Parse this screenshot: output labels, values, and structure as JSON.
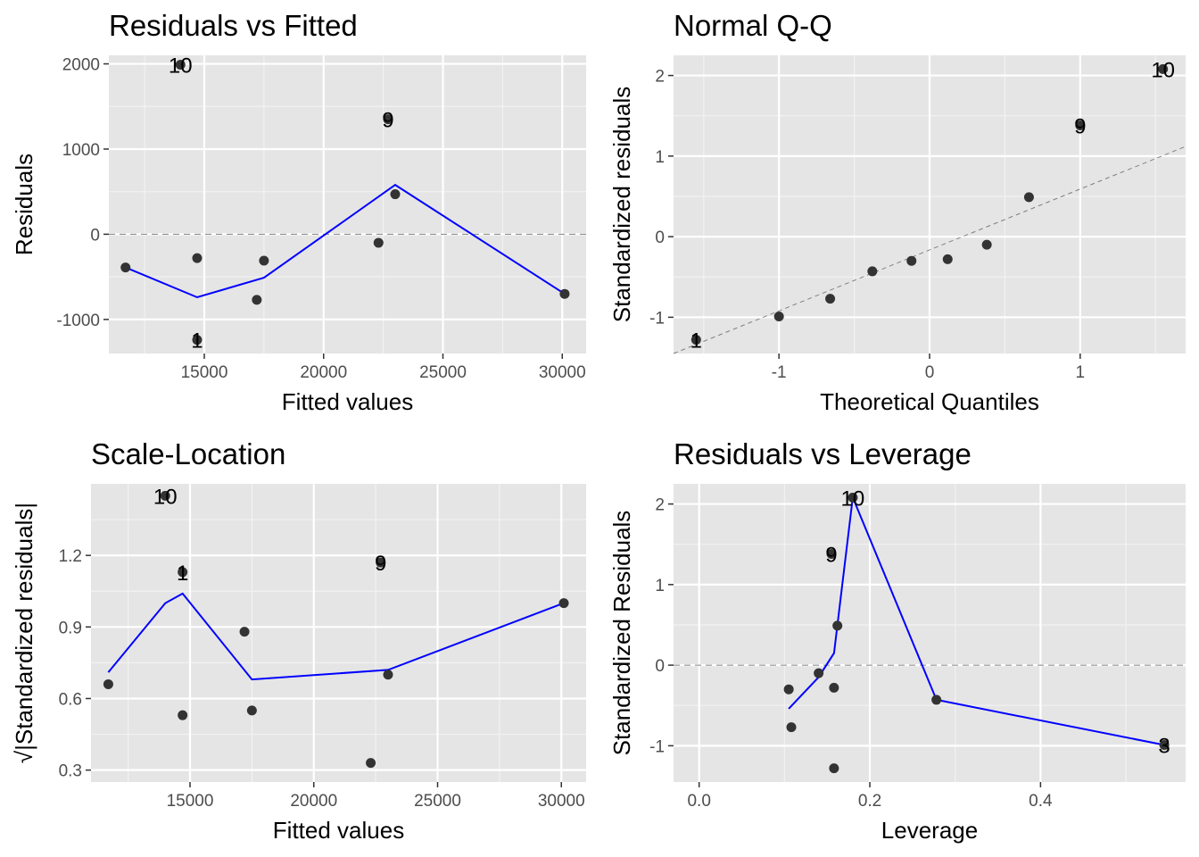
{
  "chart_data": [
    {
      "type": "scatter",
      "title": "Residuals vs Fitted",
      "xlabel": "Fitted values",
      "ylabel": "Residuals",
      "xlim": [
        11000,
        31000
      ],
      "ylim": [
        -1400,
        2100
      ],
      "xticks": [
        15000,
        20000,
        25000,
        30000
      ],
      "yticks": [
        -1000,
        0,
        1000,
        2000
      ],
      "xtick_labels": [
        "15000",
        "20000",
        "25000",
        "30000"
      ],
      "ytick_labels": [
        "-1000",
        "0",
        "1000",
        "2000"
      ],
      "xminor": [
        12500,
        17500,
        22500,
        27500
      ],
      "yminor": [
        -500,
        500,
        1500
      ],
      "hline": 0,
      "points": [
        {
          "x": 11700,
          "y": -390
        },
        {
          "x": 14000,
          "y": 1990,
          "label": "10"
        },
        {
          "x": 14700,
          "y": -1240,
          "label": "1"
        },
        {
          "x": 14700,
          "y": -280
        },
        {
          "x": 17200,
          "y": -770
        },
        {
          "x": 17500,
          "y": -310
        },
        {
          "x": 22300,
          "y": -100
        },
        {
          "x": 22700,
          "y": 1350,
          "label": "9"
        },
        {
          "x": 23000,
          "y": 470
        },
        {
          "x": 30100,
          "y": -700
        }
      ],
      "smooth": [
        {
          "x": 11700,
          "y": -390
        },
        {
          "x": 14700,
          "y": -740
        },
        {
          "x": 17500,
          "y": -510
        },
        {
          "x": 23000,
          "y": 580
        },
        {
          "x": 30100,
          "y": -700
        }
      ]
    },
    {
      "type": "scatter",
      "title": "Normal Q-Q",
      "xlabel": "Theoretical Quantiles",
      "ylabel": "Standardized residuals",
      "xlim": [
        -1.7,
        1.7
      ],
      "ylim": [
        -1.45,
        2.25
      ],
      "xticks": [
        -1,
        0,
        1
      ],
      "yticks": [
        -1,
        0,
        1,
        2
      ],
      "xtick_labels": [
        "-1",
        "0",
        "1"
      ],
      "ytick_labels": [
        "-1",
        "0",
        "1",
        "2"
      ],
      "xminor": [
        -1.5,
        -0.5,
        0.5,
        1.5
      ],
      "yminor": [
        -0.5,
        0.5,
        1.5
      ],
      "refline": [
        {
          "x": -1.7,
          "y": -1.45
        },
        {
          "x": 1.7,
          "y": 1.12
        }
      ],
      "points": [
        {
          "x": -1.55,
          "y": -1.28,
          "label": "1"
        },
        {
          "x": -1.0,
          "y": -0.99
        },
        {
          "x": -0.66,
          "y": -0.77
        },
        {
          "x": -0.38,
          "y": -0.43
        },
        {
          "x": -0.12,
          "y": -0.3
        },
        {
          "x": 0.12,
          "y": -0.28
        },
        {
          "x": 0.38,
          "y": -0.1
        },
        {
          "x": 0.66,
          "y": 0.49
        },
        {
          "x": 1.0,
          "y": 1.38,
          "label": "9"
        },
        {
          "x": 1.55,
          "y": 2.08,
          "label": "10"
        }
      ]
    },
    {
      "type": "scatter",
      "title": "Scale-Location",
      "xlabel": "Fitted values",
      "ylabel": "√|Standardized residuals|",
      "xlim": [
        11000,
        31000
      ],
      "ylim": [
        0.25,
        1.5
      ],
      "xticks": [
        15000,
        20000,
        25000,
        30000
      ],
      "yticks": [
        0.3,
        0.6,
        0.9,
        1.2
      ],
      "xtick_labels": [
        "15000",
        "20000",
        "25000",
        "30000"
      ],
      "ytick_labels": [
        "0.3",
        "0.6",
        "0.9",
        "1.2"
      ],
      "xminor": [
        12500,
        17500,
        22500,
        27500
      ],
      "yminor": [
        0.45,
        0.75,
        1.05,
        1.35
      ],
      "points": [
        {
          "x": 11700,
          "y": 0.66
        },
        {
          "x": 14000,
          "y": 1.45,
          "label": "10"
        },
        {
          "x": 14700,
          "y": 1.13,
          "label": "1"
        },
        {
          "x": 14700,
          "y": 0.53
        },
        {
          "x": 17200,
          "y": 0.88
        },
        {
          "x": 17500,
          "y": 0.55
        },
        {
          "x": 22300,
          "y": 0.33
        },
        {
          "x": 22700,
          "y": 1.17,
          "label": "9"
        },
        {
          "x": 23000,
          "y": 0.7
        },
        {
          "x": 30100,
          "y": 1.0
        }
      ],
      "smooth": [
        {
          "x": 11700,
          "y": 0.71
        },
        {
          "x": 14000,
          "y": 1.0
        },
        {
          "x": 14700,
          "y": 1.04
        },
        {
          "x": 17500,
          "y": 0.68
        },
        {
          "x": 23000,
          "y": 0.72
        },
        {
          "x": 30100,
          "y": 1.0
        }
      ]
    },
    {
      "type": "scatter",
      "title": "Residuals vs Leverage",
      "xlabel": "Leverage",
      "ylabel": "Standardized Residuals",
      "xlim": [
        -0.03,
        0.57
      ],
      "ylim": [
        -1.45,
        2.25
      ],
      "xticks": [
        0.0,
        0.2,
        0.4
      ],
      "yticks": [
        -1,
        0,
        1,
        2
      ],
      "xtick_labels": [
        "0.0",
        "0.2",
        "0.4"
      ],
      "ytick_labels": [
        "-1",
        "0",
        "1",
        "2"
      ],
      "xminor": [
        0.1,
        0.3,
        0.5
      ],
      "yminor": [
        -0.5,
        0.5,
        1.5
      ],
      "hline": 0,
      "points": [
        {
          "x": 0.105,
          "y": -0.3
        },
        {
          "x": 0.108,
          "y": -0.77
        },
        {
          "x": 0.14,
          "y": -0.1
        },
        {
          "x": 0.155,
          "y": 1.38,
          "label": "9"
        },
        {
          "x": 0.158,
          "y": -0.28
        },
        {
          "x": 0.158,
          "y": -1.28
        },
        {
          "x": 0.162,
          "y": 0.49
        },
        {
          "x": 0.18,
          "y": 2.08,
          "label": "10"
        },
        {
          "x": 0.278,
          "y": -0.43
        },
        {
          "x": 0.545,
          "y": -0.99,
          "label": "3"
        }
      ],
      "smooth": [
        {
          "x": 0.105,
          "y": -0.54
        },
        {
          "x": 0.14,
          "y": -0.15
        },
        {
          "x": 0.158,
          "y": 0.15
        },
        {
          "x": 0.18,
          "y": 2.08
        },
        {
          "x": 0.278,
          "y": -0.43
        },
        {
          "x": 0.545,
          "y": -0.99
        }
      ]
    }
  ],
  "colors": {
    "panel_bg": "#e5e5e5",
    "grid_major": "#ffffff",
    "grid_minor": "#f2f2f2",
    "point": "#333333",
    "smooth": "#0000ff",
    "refline": "#808080"
  }
}
